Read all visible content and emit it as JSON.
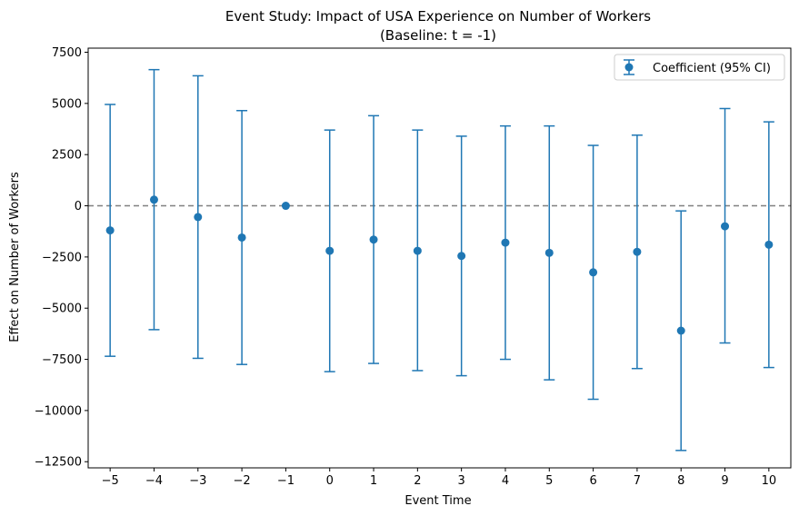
{
  "chart_data": {
    "type": "scatter",
    "title": "Event Study: Impact of USA Experience on Number of Workers",
    "subtitle": "(Baseline: t = -1)",
    "xlabel": "Event Time",
    "ylabel": "Effect on Number of Workers",
    "xlim": [
      -5.5,
      10.5
    ],
    "ylim": [
      -12800,
      7700
    ],
    "x_ticks": [
      -5,
      -4,
      -3,
      -2,
      -1,
      0,
      1,
      2,
      3,
      4,
      5,
      6,
      7,
      8,
      9,
      10
    ],
    "x_tick_labels": [
      "−5",
      "−4",
      "−3",
      "−2",
      "−1",
      "0",
      "1",
      "2",
      "3",
      "4",
      "5",
      "6",
      "7",
      "8",
      "9",
      "10"
    ],
    "y_ticks": [
      7500,
      5000,
      2500,
      0,
      -2500,
      -5000,
      -7500,
      -10000,
      -12500
    ],
    "y_tick_labels": [
      "7500",
      "5000",
      "2500",
      "0",
      "−2500",
      "−5000",
      "−7500",
      "−10000",
      "−12500"
    ],
    "reference_line": {
      "y": 0,
      "style": "dashed",
      "color": "#808080"
    },
    "legend": {
      "position": "top-right",
      "label": "Coefficient (95% CI)"
    },
    "grid": false,
    "series": [
      {
        "name": "Coefficient (95% CI)",
        "color": "#1f77b4",
        "points": [
          {
            "x": -5,
            "y": -1200,
            "lo": -7350,
            "hi": 4950
          },
          {
            "x": -4,
            "y": 300,
            "lo": -6050,
            "hi": 6650
          },
          {
            "x": -3,
            "y": -550,
            "lo": -7450,
            "hi": 6350
          },
          {
            "x": -2,
            "y": -1550,
            "lo": -7750,
            "hi": 4650
          },
          {
            "x": -1,
            "y": 0,
            "lo": 0,
            "hi": 0
          },
          {
            "x": 0,
            "y": -2200,
            "lo": -8100,
            "hi": 3700
          },
          {
            "x": 1,
            "y": -1650,
            "lo": -7700,
            "hi": 4400
          },
          {
            "x": 2,
            "y": -2200,
            "lo": -8050,
            "hi": 3700
          },
          {
            "x": 3,
            "y": -2450,
            "lo": -8300,
            "hi": 3400
          },
          {
            "x": 4,
            "y": -1800,
            "lo": -7500,
            "hi": 3900
          },
          {
            "x": 5,
            "y": -2300,
            "lo": -8500,
            "hi": 3900
          },
          {
            "x": 6,
            "y": -3250,
            "lo": -9450,
            "hi": 2950
          },
          {
            "x": 7,
            "y": -2250,
            "lo": -7950,
            "hi": 3450
          },
          {
            "x": 8,
            "y": -6100,
            "lo": -11950,
            "hi": -250
          },
          {
            "x": 9,
            "y": -1000,
            "lo": -6700,
            "hi": 4750
          },
          {
            "x": 10,
            "y": -1900,
            "lo": -7900,
            "hi": 4100
          }
        ]
      }
    ]
  }
}
